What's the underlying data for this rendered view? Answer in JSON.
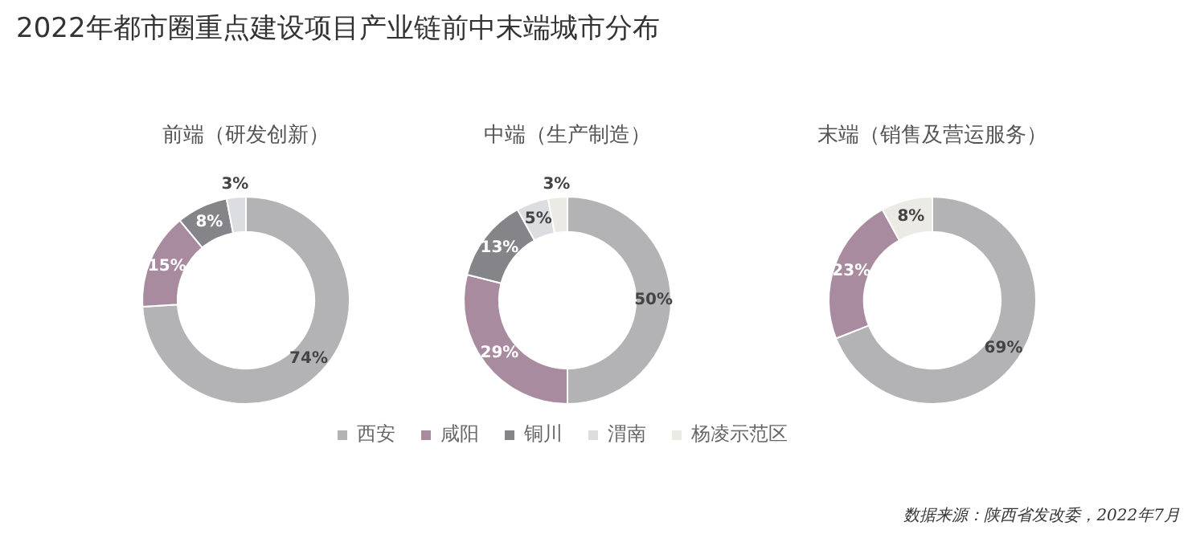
{
  "chart_data": [
    {
      "type": "donut",
      "title": "前端（研发创新）",
      "annotations": [
        "2022年都市圈重点建设项目产业链前中末端城市分布"
      ],
      "categories": [
        "西安",
        "咸阳",
        "铜川",
        "渭南",
        "杨凌示范区"
      ],
      "values": [
        74,
        15,
        8,
        3,
        null
      ],
      "value_labels": [
        "74%",
        "15%",
        "8%",
        "3%",
        null
      ],
      "colors": [
        "#b3b3b5",
        "#a98ba0",
        "#858488",
        "#dcdde0",
        "#eceae4"
      ],
      "legend": "bottom"
    },
    {
      "type": "donut",
      "title": "中端（生产制造）",
      "categories": [
        null,
        null,
        null,
        null,
        null
      ],
      "values": [
        50,
        29,
        13,
        5,
        3
      ],
      "value_labels": [
        "50%",
        "29%",
        "13%",
        "5%",
        "3%"
      ],
      "colors": [
        "#b3b3b5",
        "#a98ba0",
        "#858488",
        "#dcdde0",
        "#eceae4"
      ]
    },
    {
      "type": "donut",
      "title": "末端（销售及营运服务）",
      "annotations": [
        "数据来源：陕西省发改委，2022年7月"
      ],
      "categories": [
        null,
        null,
        null,
        null,
        null
      ],
      "values": [
        69,
        23,
        null,
        null,
        8
      ],
      "value_labels": [
        "69%",
        "23%",
        null,
        null,
        "8%"
      ],
      "colors": [
        "#b3b3b5",
        "#a98ba0",
        "#858488",
        "#dcdde0",
        "#eceae4"
      ]
    }
  ]
}
